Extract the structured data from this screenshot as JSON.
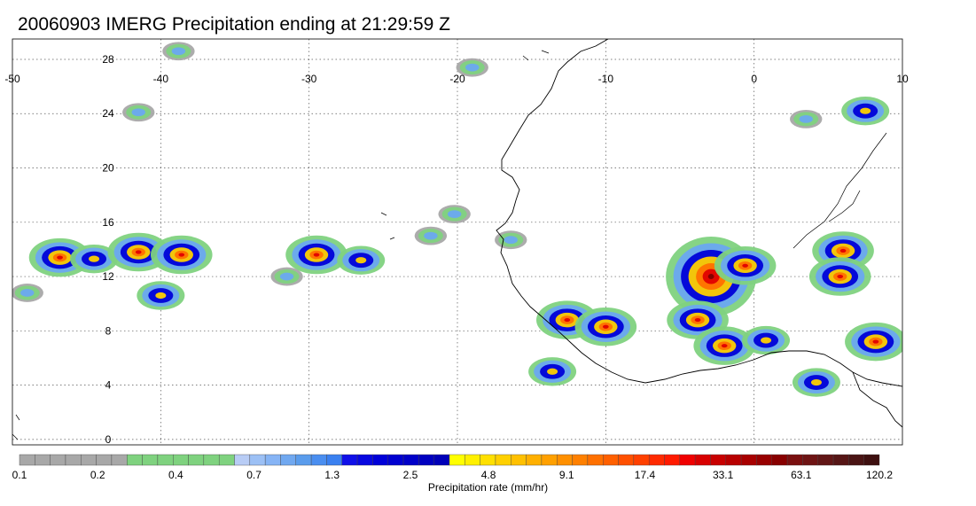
{
  "title": "20060903 IMERG Precipitation ending at 21:29:59 Z",
  "map": {
    "lon_min": -50,
    "lon_max": 10,
    "lat_min": -0.4,
    "lat_max": 29.5,
    "lon_ticks": [
      "-50",
      "-40",
      "-30",
      "-20",
      "-10",
      "0",
      "10"
    ],
    "lon_values": [
      -50,
      -40,
      -30,
      -20,
      -10,
      0,
      10
    ],
    "lat_ticks": [
      "0",
      "4",
      "8",
      "12",
      "16",
      "20",
      "24",
      "28"
    ],
    "lat_values": [
      0,
      4,
      8,
      12,
      16,
      20,
      24,
      28
    ],
    "gridlines": "dotted"
  },
  "colorbar": {
    "label": "Precipitation rate (mm/hr)",
    "tick_labels": [
      "0.1",
      "0.2",
      "0.4",
      "0.7",
      "1.3",
      "2.5",
      "4.8",
      "9.1",
      "17.4",
      "33.1",
      "63.1",
      "120.2"
    ],
    "colors": [
      "#a8a8a8",
      "#a8a8a8",
      "#a8a8a8",
      "#a8a8a8",
      "#a8a8a8",
      "#a8a8a8",
      "#a8a8a8",
      "#7fd27f",
      "#7fd27f",
      "#7fd27f",
      "#7fd27f",
      "#7fd27f",
      "#7fd27f",
      "#7fd27f",
      "#b8ccf5",
      "#9cc0f5",
      "#86b4f5",
      "#70a8f0",
      "#5a9cec",
      "#4a8ef0",
      "#3a80f0",
      "#1010e8",
      "#0808e0",
      "#0000d8",
      "#0000d0",
      "#0000c8",
      "#0000c0",
      "#0000b8",
      "#ffff00",
      "#fff000",
      "#ffe000",
      "#ffd000",
      "#ffc000",
      "#ffb000",
      "#ffa000",
      "#ff9000",
      "#ff8000",
      "#ff7000",
      "#ff6000",
      "#ff5000",
      "#ff4000",
      "#ff2a00",
      "#ff1a00",
      "#f00000",
      "#d80000",
      "#c80000",
      "#b80000",
      "#a80000",
      "#980000",
      "#880000",
      "#7a1010",
      "#6e1414",
      "#621616",
      "#561616",
      "#4a1414",
      "#3e1010"
    ]
  },
  "precip_cells": [
    {
      "lon": -46.8,
      "lat": 13.4,
      "intensity": "heavy"
    },
    {
      "lon": -44.5,
      "lat": 13.3,
      "intensity": "moderate"
    },
    {
      "lon": -41.5,
      "lat": 13.8,
      "intensity": "heavy"
    },
    {
      "lon": -38.6,
      "lat": 13.6,
      "intensity": "heavy"
    },
    {
      "lon": -40.0,
      "lat": 10.6,
      "intensity": "moderate"
    },
    {
      "lon": -49.0,
      "lat": 10.8,
      "intensity": "light"
    },
    {
      "lon": -29.5,
      "lat": 13.6,
      "intensity": "heavy"
    },
    {
      "lon": -26.5,
      "lat": 13.2,
      "intensity": "moderate"
    },
    {
      "lon": -31.5,
      "lat": 12.0,
      "intensity": "light"
    },
    {
      "lon": -41.5,
      "lat": 24.1,
      "intensity": "light"
    },
    {
      "lon": -38.8,
      "lat": 28.6,
      "intensity": "light"
    },
    {
      "lon": -12.6,
      "lat": 8.8,
      "intensity": "heavy"
    },
    {
      "lon": -10.0,
      "lat": 8.3,
      "intensity": "heavy"
    },
    {
      "lon": -13.6,
      "lat": 5.0,
      "intensity": "moderate"
    },
    {
      "lon": -2.9,
      "lat": 12.0,
      "intensity": "extreme"
    },
    {
      "lon": -0.6,
      "lat": 12.8,
      "intensity": "heavy"
    },
    {
      "lon": -3.8,
      "lat": 8.8,
      "intensity": "heavy"
    },
    {
      "lon": -2.0,
      "lat": 6.9,
      "intensity": "heavy"
    },
    {
      "lon": 0.8,
      "lat": 7.3,
      "intensity": "moderate"
    },
    {
      "lon": 4.2,
      "lat": 4.2,
      "intensity": "moderate"
    },
    {
      "lon": 6.0,
      "lat": 13.9,
      "intensity": "heavy"
    },
    {
      "lon": 5.8,
      "lat": 12.0,
      "intensity": "heavy"
    },
    {
      "lon": 8.2,
      "lat": 7.2,
      "intensity": "heavy"
    },
    {
      "lon": 7.5,
      "lat": 24.2,
      "intensity": "moderate"
    },
    {
      "lon": 3.5,
      "lat": 23.6,
      "intensity": "light"
    },
    {
      "lon": -21.8,
      "lat": 15.0,
      "intensity": "light"
    },
    {
      "lon": -20.2,
      "lat": 16.6,
      "intensity": "light"
    },
    {
      "lon": -16.4,
      "lat": 14.7,
      "intensity": "light"
    },
    {
      "lon": -19.0,
      "lat": 27.4,
      "intensity": "light"
    }
  ]
}
